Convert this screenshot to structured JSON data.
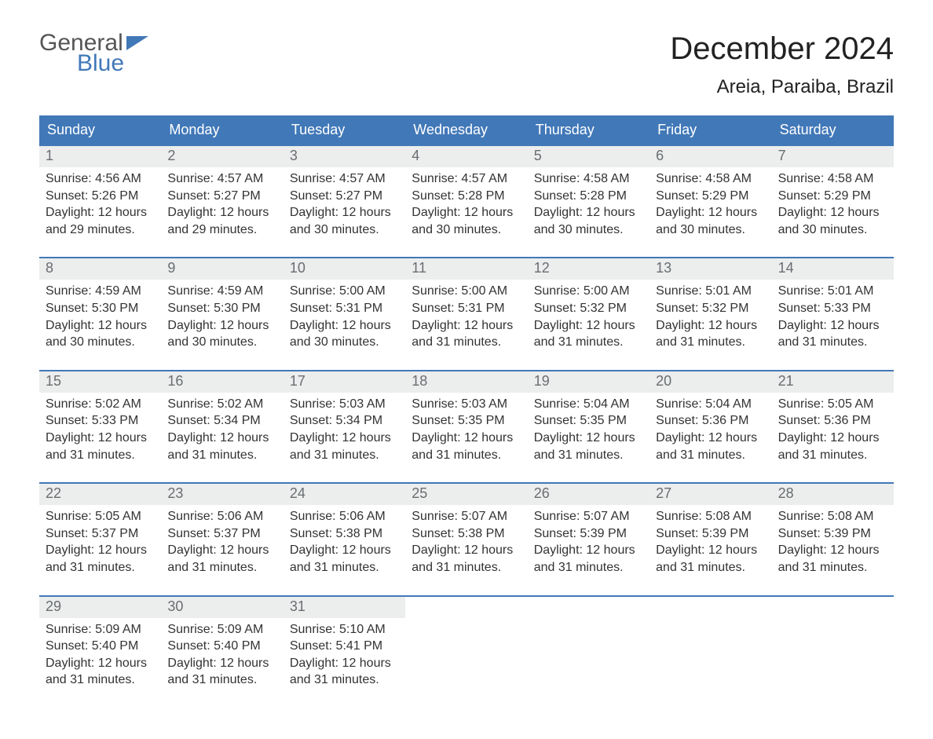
{
  "brand": {
    "word1": "General",
    "word2": "Blue",
    "accent_color": "#4178b8"
  },
  "title": "December 2024",
  "location": "Areia, Paraiba, Brazil",
  "colors": {
    "header_bg": "#4178b8",
    "header_text": "#ffffff",
    "daynum_bg": "#eceded",
    "daynum_text": "#6a6e71",
    "body_text": "#333333",
    "week_border": "#4178b8",
    "page_bg": "#ffffff"
  },
  "fonts": {
    "title_size_pt": 30,
    "location_size_pt": 18,
    "dayname_size_pt": 14,
    "body_size_pt": 12
  },
  "day_names": [
    "Sunday",
    "Monday",
    "Tuesday",
    "Wednesday",
    "Thursday",
    "Friday",
    "Saturday"
  ],
  "calendar": {
    "type": "table",
    "columns": 7,
    "weeks": [
      [
        {
          "n": "1",
          "l1": "Sunrise: 4:56 AM",
          "l2": "Sunset: 5:26 PM",
          "l3": "Daylight: 12 hours",
          "l4": "and 29 minutes."
        },
        {
          "n": "2",
          "l1": "Sunrise: 4:57 AM",
          "l2": "Sunset: 5:27 PM",
          "l3": "Daylight: 12 hours",
          "l4": "and 29 minutes."
        },
        {
          "n": "3",
          "l1": "Sunrise: 4:57 AM",
          "l2": "Sunset: 5:27 PM",
          "l3": "Daylight: 12 hours",
          "l4": "and 30 minutes."
        },
        {
          "n": "4",
          "l1": "Sunrise: 4:57 AM",
          "l2": "Sunset: 5:28 PM",
          "l3": "Daylight: 12 hours",
          "l4": "and 30 minutes."
        },
        {
          "n": "5",
          "l1": "Sunrise: 4:58 AM",
          "l2": "Sunset: 5:28 PM",
          "l3": "Daylight: 12 hours",
          "l4": "and 30 minutes."
        },
        {
          "n": "6",
          "l1": "Sunrise: 4:58 AM",
          "l2": "Sunset: 5:29 PM",
          "l3": "Daylight: 12 hours",
          "l4": "and 30 minutes."
        },
        {
          "n": "7",
          "l1": "Sunrise: 4:58 AM",
          "l2": "Sunset: 5:29 PM",
          "l3": "Daylight: 12 hours",
          "l4": "and 30 minutes."
        }
      ],
      [
        {
          "n": "8",
          "l1": "Sunrise: 4:59 AM",
          "l2": "Sunset: 5:30 PM",
          "l3": "Daylight: 12 hours",
          "l4": "and 30 minutes."
        },
        {
          "n": "9",
          "l1": "Sunrise: 4:59 AM",
          "l2": "Sunset: 5:30 PM",
          "l3": "Daylight: 12 hours",
          "l4": "and 30 minutes."
        },
        {
          "n": "10",
          "l1": "Sunrise: 5:00 AM",
          "l2": "Sunset: 5:31 PM",
          "l3": "Daylight: 12 hours",
          "l4": "and 30 minutes."
        },
        {
          "n": "11",
          "l1": "Sunrise: 5:00 AM",
          "l2": "Sunset: 5:31 PM",
          "l3": "Daylight: 12 hours",
          "l4": "and 31 minutes."
        },
        {
          "n": "12",
          "l1": "Sunrise: 5:00 AM",
          "l2": "Sunset: 5:32 PM",
          "l3": "Daylight: 12 hours",
          "l4": "and 31 minutes."
        },
        {
          "n": "13",
          "l1": "Sunrise: 5:01 AM",
          "l2": "Sunset: 5:32 PM",
          "l3": "Daylight: 12 hours",
          "l4": "and 31 minutes."
        },
        {
          "n": "14",
          "l1": "Sunrise: 5:01 AM",
          "l2": "Sunset: 5:33 PM",
          "l3": "Daylight: 12 hours",
          "l4": "and 31 minutes."
        }
      ],
      [
        {
          "n": "15",
          "l1": "Sunrise: 5:02 AM",
          "l2": "Sunset: 5:33 PM",
          "l3": "Daylight: 12 hours",
          "l4": "and 31 minutes."
        },
        {
          "n": "16",
          "l1": "Sunrise: 5:02 AM",
          "l2": "Sunset: 5:34 PM",
          "l3": "Daylight: 12 hours",
          "l4": "and 31 minutes."
        },
        {
          "n": "17",
          "l1": "Sunrise: 5:03 AM",
          "l2": "Sunset: 5:34 PM",
          "l3": "Daylight: 12 hours",
          "l4": "and 31 minutes."
        },
        {
          "n": "18",
          "l1": "Sunrise: 5:03 AM",
          "l2": "Sunset: 5:35 PM",
          "l3": "Daylight: 12 hours",
          "l4": "and 31 minutes."
        },
        {
          "n": "19",
          "l1": "Sunrise: 5:04 AM",
          "l2": "Sunset: 5:35 PM",
          "l3": "Daylight: 12 hours",
          "l4": "and 31 minutes."
        },
        {
          "n": "20",
          "l1": "Sunrise: 5:04 AM",
          "l2": "Sunset: 5:36 PM",
          "l3": "Daylight: 12 hours",
          "l4": "and 31 minutes."
        },
        {
          "n": "21",
          "l1": "Sunrise: 5:05 AM",
          "l2": "Sunset: 5:36 PM",
          "l3": "Daylight: 12 hours",
          "l4": "and 31 minutes."
        }
      ],
      [
        {
          "n": "22",
          "l1": "Sunrise: 5:05 AM",
          "l2": "Sunset: 5:37 PM",
          "l3": "Daylight: 12 hours",
          "l4": "and 31 minutes."
        },
        {
          "n": "23",
          "l1": "Sunrise: 5:06 AM",
          "l2": "Sunset: 5:37 PM",
          "l3": "Daylight: 12 hours",
          "l4": "and 31 minutes."
        },
        {
          "n": "24",
          "l1": "Sunrise: 5:06 AM",
          "l2": "Sunset: 5:38 PM",
          "l3": "Daylight: 12 hours",
          "l4": "and 31 minutes."
        },
        {
          "n": "25",
          "l1": "Sunrise: 5:07 AM",
          "l2": "Sunset: 5:38 PM",
          "l3": "Daylight: 12 hours",
          "l4": "and 31 minutes."
        },
        {
          "n": "26",
          "l1": "Sunrise: 5:07 AM",
          "l2": "Sunset: 5:39 PM",
          "l3": "Daylight: 12 hours",
          "l4": "and 31 minutes."
        },
        {
          "n": "27",
          "l1": "Sunrise: 5:08 AM",
          "l2": "Sunset: 5:39 PM",
          "l3": "Daylight: 12 hours",
          "l4": "and 31 minutes."
        },
        {
          "n": "28",
          "l1": "Sunrise: 5:08 AM",
          "l2": "Sunset: 5:39 PM",
          "l3": "Daylight: 12 hours",
          "l4": "and 31 minutes."
        }
      ],
      [
        {
          "n": "29",
          "l1": "Sunrise: 5:09 AM",
          "l2": "Sunset: 5:40 PM",
          "l3": "Daylight: 12 hours",
          "l4": "and 31 minutes."
        },
        {
          "n": "30",
          "l1": "Sunrise: 5:09 AM",
          "l2": "Sunset: 5:40 PM",
          "l3": "Daylight: 12 hours",
          "l4": "and 31 minutes."
        },
        {
          "n": "31",
          "l1": "Sunrise: 5:10 AM",
          "l2": "Sunset: 5:41 PM",
          "l3": "Daylight: 12 hours",
          "l4": "and 31 minutes."
        },
        {
          "empty": true
        },
        {
          "empty": true
        },
        {
          "empty": true
        },
        {
          "empty": true
        }
      ]
    ]
  }
}
